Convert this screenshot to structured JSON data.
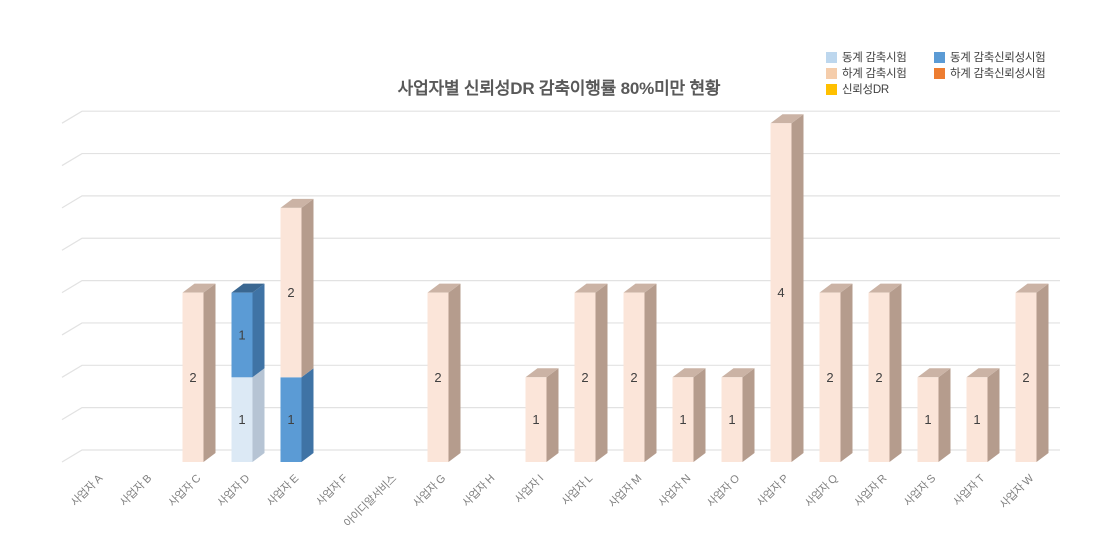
{
  "chart_data": {
    "type": "bar",
    "stacked": true,
    "style": "3d",
    "title": "사업자별 신뢰성DR 감축이행률 80%미만 현황",
    "xlabel": "",
    "ylabel": "",
    "ylim": [
      0,
      4
    ],
    "grid_step": 0.5,
    "grid_on": true,
    "grid_color": "#e2e2e2",
    "value_label_color": "#404040",
    "axis_label_color": "#808080",
    "title_color": "#595959",
    "legend_position": "top-right",
    "categories": [
      "사업자 A",
      "사업자 B",
      "사업자 C",
      "사업자 D",
      "사업자 E",
      "사업자 F",
      "아이디알서비스",
      "사업자 G",
      "사업자 H",
      "사업자 I",
      "사업자 L",
      "사업자 M",
      "사업자 N",
      "사업자 O",
      "사업자 P",
      "사업자 Q",
      "사업자 R",
      "사업자 S",
      "사업자 T",
      "사업자 W"
    ],
    "series": [
      {
        "name": "동계 감축시험",
        "legend_color": "#bdd7ee",
        "front_color": "#dce9f5",
        "side_color": "#b6c4d4",
        "top_color": "#aebfd2",
        "values": [
          0,
          0,
          0,
          1,
          0,
          0,
          0,
          0,
          0,
          0,
          0,
          0,
          0,
          0,
          0,
          0,
          0,
          0,
          0,
          0
        ]
      },
      {
        "name": "동계 감축신뢰성시험",
        "legend_color": "#5b9bd5",
        "front_color": "#5b9bd5",
        "side_color": "#3f73a5",
        "top_color": "#3a6791",
        "values": [
          0,
          0,
          0,
          1,
          1,
          0,
          0,
          0,
          0,
          0,
          0,
          0,
          0,
          0,
          0,
          0,
          0,
          0,
          0,
          0
        ]
      },
      {
        "name": "하계 감축시험",
        "legend_color": "#f5cdab",
        "front_color": "#fbe5d9",
        "side_color": "#b59c8d",
        "top_color": "#cbb3a5",
        "values": [
          0,
          0,
          2,
          0,
          2,
          0,
          0,
          2,
          0,
          1,
          2,
          2,
          1,
          1,
          4,
          2,
          2,
          1,
          1,
          2
        ]
      },
      {
        "name": "하계 감축신뢰성시험",
        "legend_color": "#ed7d31",
        "front_color": "#ed7d31",
        "side_color": "#c55f18",
        "top_color": "#b25515",
        "values": [
          0,
          0,
          0,
          0,
          0,
          0,
          0,
          0,
          0,
          0,
          0,
          0,
          0,
          0,
          0,
          0,
          0,
          0,
          0,
          0
        ]
      },
      {
        "name": "신뢰성DR",
        "legend_color": "#ffc000",
        "front_color": "#ffc000",
        "side_color": "#d09c00",
        "top_color": "#bd8e00",
        "values": [
          0,
          0,
          0,
          0,
          0,
          0,
          0,
          0,
          0,
          0,
          0,
          0,
          0,
          0,
          0,
          0,
          0,
          0,
          0,
          0
        ]
      }
    ],
    "legend_rows": [
      [
        0,
        1
      ],
      [
        2,
        3
      ],
      [
        4
      ]
    ]
  }
}
